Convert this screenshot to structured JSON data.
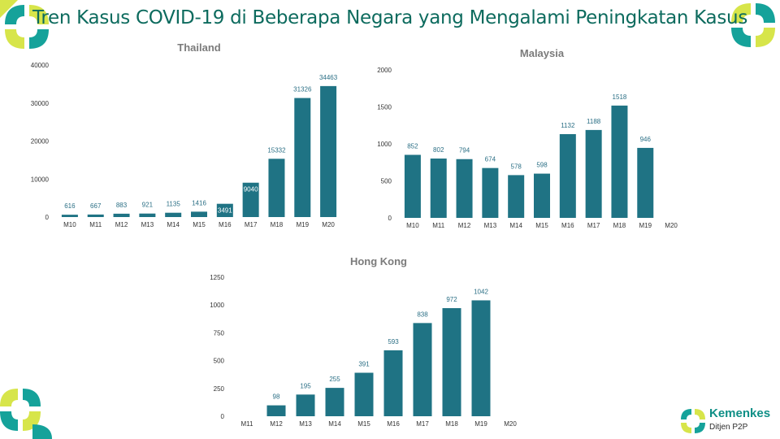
{
  "slide": {
    "title": "Tren Kasus COVID-19 di Beberapa Negara yang Mengalami Peningkatan Kasus"
  },
  "logo": {
    "name": "Kemenkes",
    "subtitle": "Ditjen P2P"
  },
  "colors": {
    "bar": "#1f7384",
    "title": "#0d6b5e",
    "data_label": "#2b6f85",
    "deco_teal": "#15a29a",
    "deco_yellow": "#d7e54a"
  },
  "chart_data": [
    {
      "type": "bar",
      "title": "Thailand",
      "categories": [
        "M10",
        "M11",
        "M12",
        "M13",
        "M14",
        "M15",
        "M16",
        "M17",
        "M18",
        "M19",
        "M20"
      ],
      "values": [
        616,
        667,
        883,
        921,
        1135,
        1416,
        3491,
        9040,
        15332,
        31326,
        34463
      ],
      "yticks": [
        0,
        10000,
        20000,
        30000,
        40000
      ],
      "ylim": [
        0,
        40000
      ],
      "xlabel": "",
      "ylabel": "",
      "grid": false,
      "legend": "none",
      "label_inside": [
        6,
        7
      ]
    },
    {
      "type": "bar",
      "title": "Malaysia",
      "categories": [
        "M10",
        "M11",
        "M12",
        "M13",
        "M14",
        "M15",
        "M16",
        "M17",
        "M18",
        "M19",
        "M20"
      ],
      "values": [
        852,
        802,
        794,
        674,
        578,
        598,
        1132,
        1188,
        1518,
        946,
        null
      ],
      "yticks": [
        0,
        500,
        1000,
        1500,
        2000
      ],
      "ylim": [
        0,
        2000
      ],
      "xlabel": "",
      "ylabel": "",
      "grid": false,
      "legend": "none",
      "label_inside": []
    },
    {
      "type": "bar",
      "title": "Hong Kong",
      "categories": [
        "M11",
        "M12",
        "M13",
        "M14",
        "M15",
        "M16",
        "M17",
        "M18",
        "M19",
        "M20"
      ],
      "values": [
        null,
        98,
        195,
        255,
        391,
        593,
        838,
        972,
        1042,
        null
      ],
      "yticks": [
        0,
        250,
        500,
        750,
        1000,
        1250
      ],
      "ylim": [
        0,
        1250
      ],
      "xlabel": "",
      "ylabel": "",
      "grid": false,
      "legend": "none",
      "label_inside": []
    }
  ]
}
